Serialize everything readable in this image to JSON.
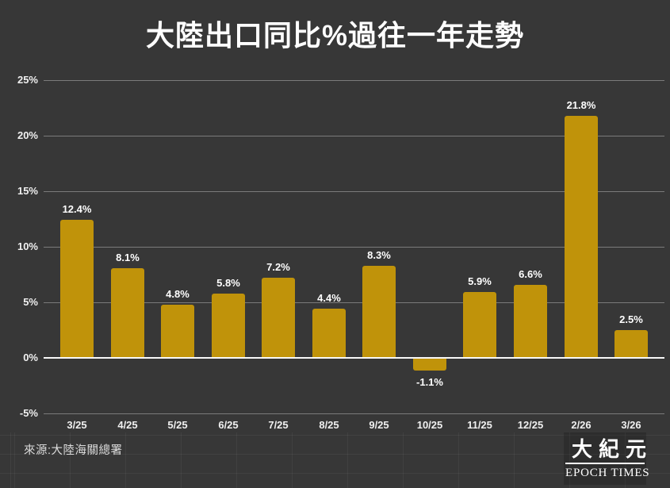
{
  "header": {
    "title": "大陸出口同比%過往一年走勢"
  },
  "chart_data": {
    "type": "bar",
    "title": "大陸出口同比%過往一年走勢",
    "categories": [
      "3/25",
      "4/25",
      "5/25",
      "6/25",
      "7/25",
      "8/25",
      "9/25",
      "10/25",
      "11/25",
      "12/25",
      "2/26",
      "3/26"
    ],
    "values": [
      12.4,
      8.1,
      4.8,
      5.8,
      7.2,
      4.4,
      8.3,
      -1.1,
      5.9,
      6.6,
      21.8,
      2.5
    ],
    "value_labels": [
      "12.4%",
      "8.1%",
      "4.8%",
      "5.8%",
      "7.2%",
      "4.4%",
      "8.3%",
      "-1.1%",
      "5.9%",
      "6.6%",
      "21.8%",
      "2.5%"
    ],
    "xlabel": "",
    "ylabel": "",
    "ylim": [
      -5,
      25
    ],
    "yticks": [
      25,
      20,
      15,
      10,
      5,
      0,
      -5
    ],
    "ytick_labels": [
      "25%",
      "20%",
      "15%",
      "10%",
      "5%",
      "0%",
      "-5%"
    ],
    "grid": true,
    "legend": false,
    "bar_color": "#c0930a",
    "background_color": "#373737",
    "gridline_color": "#7b7b7b",
    "zero_line_color": "#f7f7f7",
    "label_color": "#ffffff"
  },
  "footer": {
    "source": "來源:大陸海關總署",
    "logo": {
      "cjk": "大紀元",
      "latin": "EPOCH TIMES"
    }
  }
}
